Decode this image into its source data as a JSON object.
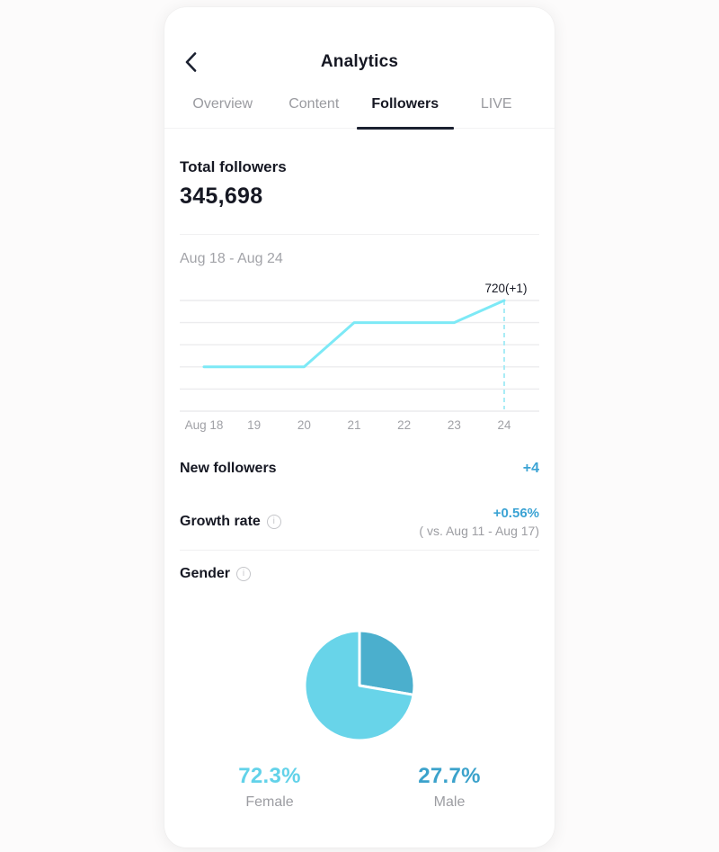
{
  "header": {
    "title": "Analytics"
  },
  "tabs": [
    {
      "label": "Overview",
      "active": false
    },
    {
      "label": "Content",
      "active": false
    },
    {
      "label": "Followers",
      "active": true
    },
    {
      "label": "LIVE",
      "active": false
    }
  ],
  "totals": {
    "label": "Total followers",
    "value": "345,698"
  },
  "date_range": "Aug 18 - Aug 24",
  "rows": {
    "new_followers": {
      "label": "New followers",
      "value": "+4"
    },
    "growth_rate": {
      "label": "Growth rate",
      "value": "+0.56%",
      "comparison": "( vs. Aug 11 - Aug 17)"
    },
    "gender": {
      "label": "Gender"
    }
  },
  "gender_stats": {
    "female": {
      "pct": "72.3%",
      "label": "Female"
    },
    "male": {
      "pct": "27.7%",
      "label": "Male"
    }
  },
  "colors": {
    "dark_text": "#161823",
    "accent_blue": "#3ba3d4",
    "line_cyan": "#7de9f6",
    "dashed_cyan": "#a9ecf6",
    "grid_gray": "#ececee",
    "axis_label_gray": "#a0a1a6",
    "pie_female": "#68d4e9",
    "pie_male": "#4bafcd"
  },
  "chart_data": [
    {
      "type": "line",
      "title": "Followers by day (Aug 18 - Aug 24)",
      "categories": [
        "Aug 18",
        "19",
        "20",
        "21",
        "22",
        "23",
        "24"
      ],
      "values": [
        717,
        717,
        717,
        719,
        719,
        719,
        720
      ],
      "ylim": [
        715,
        720
      ],
      "grid": true,
      "annotation": {
        "text": "720(+1)",
        "at_index": 6
      },
      "line_color": "#7de9f6",
      "dashed_marker_color": "#a9ecf6"
    },
    {
      "type": "pie",
      "title": "Gender",
      "slices": [
        {
          "label": "Male",
          "value": 27.7,
          "color": "#4bafcd"
        },
        {
          "label": "Female",
          "value": 72.3,
          "color": "#68d4e9"
        }
      ],
      "start_angle_deg": 0,
      "direction": "clockwise",
      "legend_position": "bottom"
    }
  ]
}
